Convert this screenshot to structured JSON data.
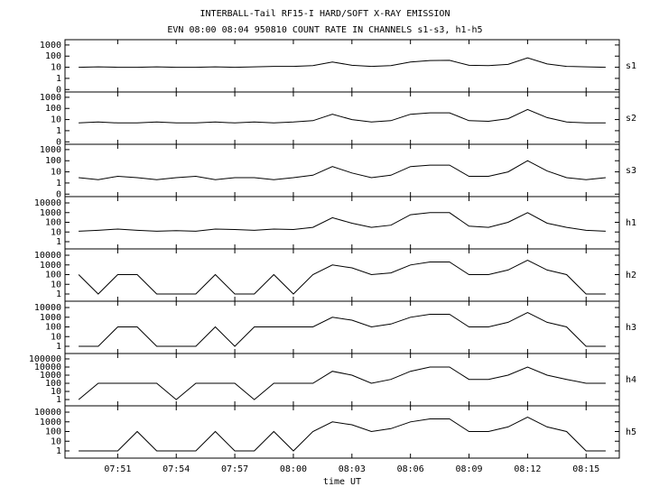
{
  "figure": {
    "title": "INTERBALL-Tail RF15-I HARD/SOFT X-RAY EMISSION",
    "subtitle": "EVN 08:00 08:04 950810  COUNT RATE IN CHANNELS s1-s3, h1-h5",
    "xlabel": "time UT",
    "xlim": [
      468.3,
      496.7
    ],
    "xticks": [
      {
        "value": 471,
        "label": "07:51"
      },
      {
        "value": 474,
        "label": "07:54"
      },
      {
        "value": 477,
        "label": "07:57"
      },
      {
        "value": 480,
        "label": "08:00"
      },
      {
        "value": 483,
        "label": "08:03"
      },
      {
        "value": 486,
        "label": "08:06"
      },
      {
        "value": 489,
        "label": "08:09"
      },
      {
        "value": 492,
        "label": "08:12"
      },
      {
        "value": 495,
        "label": "08:15"
      }
    ]
  },
  "chart_data": [
    {
      "type": "line",
      "name": "s1",
      "log_y": true,
      "color": "#000000",
      "ylim": [
        0.06,
        3000
      ],
      "yticks": [
        1000,
        100,
        10,
        1,
        {
          "value": 0.1,
          "label": "0"
        }
      ],
      "x": [
        469,
        470,
        471,
        472,
        473,
        474,
        475,
        476,
        477,
        478,
        479,
        480,
        481,
        482,
        483,
        484,
        485,
        486,
        487,
        488,
        489,
        490,
        491,
        492,
        493,
        494,
        495,
        496
      ],
      "values": [
        10,
        11,
        10,
        10,
        11,
        10,
        10,
        11,
        10,
        11,
        12,
        12,
        14,
        30,
        15,
        12,
        14,
        30,
        40,
        42,
        15,
        14,
        18,
        70,
        20,
        12,
        11,
        10
      ]
    },
    {
      "type": "line",
      "name": "s2",
      "log_y": true,
      "color": "#000000",
      "ylim": [
        0.06,
        3000
      ],
      "yticks": [
        1000,
        100,
        10,
        1,
        {
          "value": 0.1,
          "label": "0"
        }
      ],
      "x": [
        469,
        470,
        471,
        472,
        473,
        474,
        475,
        476,
        477,
        478,
        479,
        480,
        481,
        482,
        483,
        484,
        485,
        486,
        487,
        488,
        489,
        490,
        491,
        492,
        493,
        494,
        495,
        496
      ],
      "values": [
        5,
        6,
        5,
        5,
        6,
        5,
        5,
        6,
        5,
        6,
        5,
        6,
        8,
        30,
        10,
        6,
        8,
        30,
        40,
        40,
        8,
        7,
        12,
        80,
        15,
        6,
        5,
        5
      ]
    },
    {
      "type": "line",
      "name": "s3",
      "log_y": true,
      "color": "#000000",
      "ylim": [
        0.06,
        3000
      ],
      "yticks": [
        1000,
        100,
        10,
        1,
        {
          "value": 0.1,
          "label": "0"
        }
      ],
      "x": [
        469,
        470,
        471,
        472,
        473,
        474,
        475,
        476,
        477,
        478,
        479,
        480,
        481,
        482,
        483,
        484,
        485,
        486,
        487,
        488,
        489,
        490,
        491,
        492,
        493,
        494,
        495,
        496
      ],
      "values": [
        3,
        2,
        4,
        3,
        2,
        3,
        4,
        2,
        3,
        3,
        2,
        3,
        5,
        30,
        8,
        3,
        5,
        30,
        40,
        40,
        4,
        4,
        10,
        100,
        12,
        3,
        2,
        3
      ]
    },
    {
      "type": "line",
      "name": "h1",
      "log_y": true,
      "color": "#000000",
      "ylim": [
        0.18,
        45000
      ],
      "yticks": [
        10000,
        1000,
        100,
        10,
        1
      ],
      "x": [
        469,
        470,
        471,
        472,
        473,
        474,
        475,
        476,
        477,
        478,
        479,
        480,
        481,
        482,
        483,
        484,
        485,
        486,
        487,
        488,
        489,
        490,
        491,
        492,
        493,
        494,
        495,
        496
      ],
      "values": [
        12,
        15,
        20,
        15,
        12,
        14,
        12,
        20,
        18,
        15,
        20,
        18,
        30,
        300,
        80,
        30,
        50,
        600,
        1000,
        1000,
        40,
        30,
        100,
        1000,
        80,
        30,
        15,
        12
      ]
    },
    {
      "type": "line",
      "name": "h2",
      "log_y": true,
      "color": "#000000",
      "ylim": [
        0.18,
        45000
      ],
      "yticks": [
        10000,
        1000,
        100,
        10,
        1
      ],
      "x": [
        469,
        470,
        471,
        472,
        473,
        474,
        475,
        476,
        477,
        478,
        479,
        480,
        481,
        482,
        483,
        484,
        485,
        486,
        487,
        488,
        489,
        490,
        491,
        492,
        493,
        494,
        495,
        496
      ],
      "values": [
        100,
        1,
        100,
        100,
        1,
        1,
        1,
        100,
        1,
        1,
        100,
        1,
        100,
        1000,
        500,
        100,
        150,
        1000,
        2000,
        2000,
        100,
        100,
        300,
        3000,
        300,
        100,
        1,
        1
      ]
    },
    {
      "type": "line",
      "name": "h3",
      "log_y": true,
      "color": "#000000",
      "ylim": [
        0.18,
        45000
      ],
      "yticks": [
        10000,
        1000,
        100,
        10,
        1
      ],
      "x": [
        469,
        470,
        471,
        472,
        473,
        474,
        475,
        476,
        477,
        478,
        479,
        480,
        481,
        482,
        483,
        484,
        485,
        486,
        487,
        488,
        489,
        490,
        491,
        492,
        493,
        494,
        495,
        496
      ],
      "values": [
        1,
        1,
        100,
        100,
        1,
        1,
        1,
        100,
        1,
        100,
        100,
        100,
        100,
        1000,
        500,
        100,
        200,
        1000,
        2000,
        2000,
        100,
        100,
        300,
        3000,
        300,
        100,
        1,
        1
      ]
    },
    {
      "type": "line",
      "name": "h4",
      "log_y": true,
      "color": "#000000",
      "ylim": [
        0.17,
        460000
      ],
      "yticks": [
        100000,
        10000,
        1000,
        100,
        10,
        1
      ],
      "x": [
        469,
        470,
        471,
        472,
        473,
        474,
        475,
        476,
        477,
        478,
        479,
        480,
        481,
        482,
        483,
        484,
        485,
        486,
        487,
        488,
        489,
        490,
        491,
        492,
        493,
        494,
        495,
        496
      ],
      "values": [
        1,
        100,
        100,
        100,
        100,
        1,
        100,
        100,
        100,
        1,
        100,
        100,
        100,
        3000,
        1000,
        100,
        300,
        3000,
        10000,
        10000,
        300,
        300,
        1000,
        10000,
        1000,
        300,
        100,
        100
      ]
    },
    {
      "type": "line",
      "name": "h5",
      "log_y": true,
      "color": "#000000",
      "ylim": [
        0.18,
        45000
      ],
      "yticks": [
        10000,
        1000,
        100,
        10,
        1
      ],
      "x": [
        469,
        470,
        471,
        472,
        473,
        474,
        475,
        476,
        477,
        478,
        479,
        480,
        481,
        482,
        483,
        484,
        485,
        486,
        487,
        488,
        489,
        490,
        491,
        492,
        493,
        494,
        495,
        496
      ],
      "values": [
        1,
        1,
        1,
        100,
        1,
        1,
        1,
        100,
        1,
        1,
        100,
        1,
        100,
        1000,
        500,
        100,
        200,
        1000,
        2000,
        2000,
        100,
        100,
        300,
        3000,
        300,
        100,
        1,
        1
      ]
    }
  ]
}
